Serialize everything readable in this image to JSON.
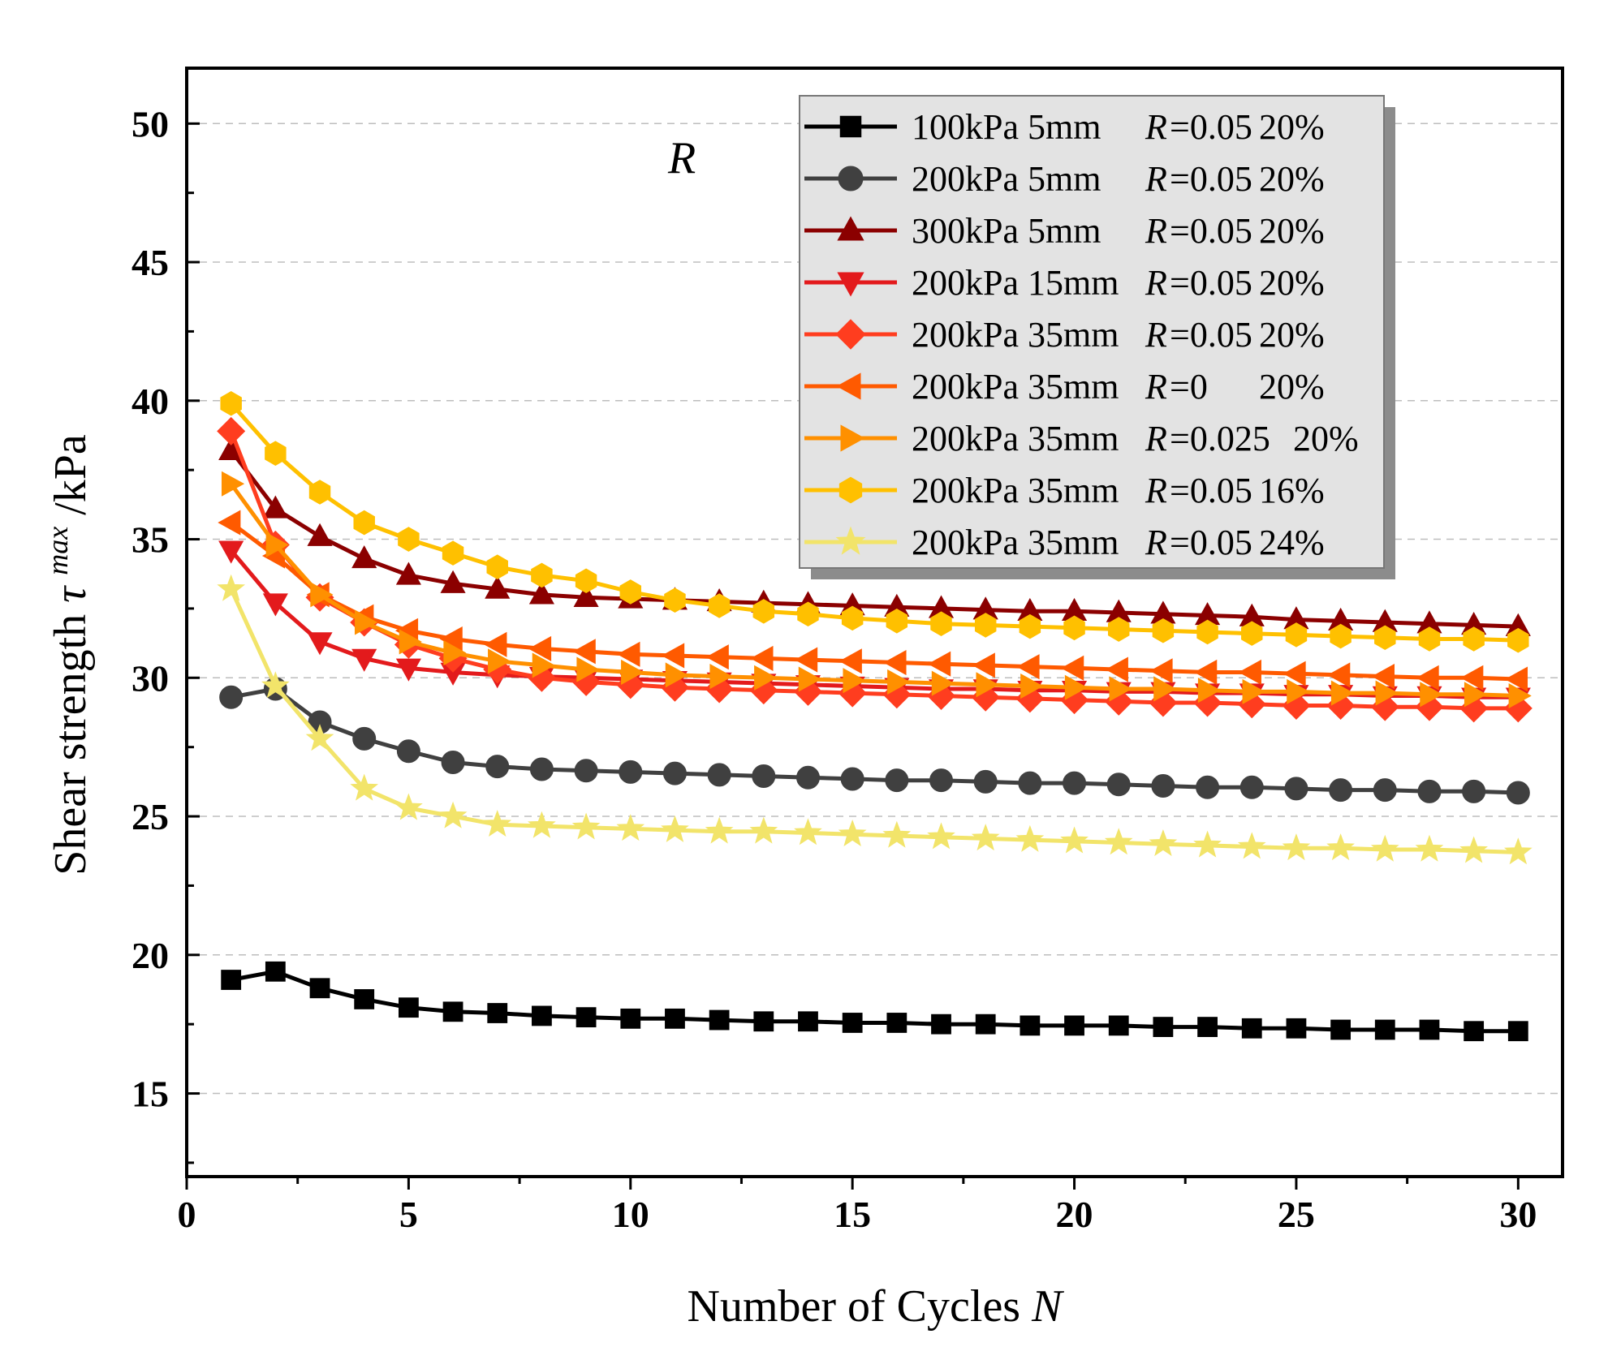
{
  "chart_data": {
    "type": "line",
    "xlabel": "Number of Cycles",
    "xlabel_var": "N",
    "ylabel": "Shear strength",
    "ylabel_symbol": "τ",
    "ylabel_sup": "max",
    "ylabel_unit": "/kPa",
    "annotation": "R",
    "xlim": [
      0,
      31
    ],
    "ylim": [
      12,
      52
    ],
    "xticks": [
      0,
      5,
      10,
      15,
      20,
      25,
      30
    ],
    "yticks": [
      15,
      20,
      25,
      30,
      35,
      40,
      45,
      50
    ],
    "grid_y": true,
    "legend_position": "top-right",
    "x": [
      1,
      2,
      3,
      4,
      5,
      6,
      7,
      8,
      9,
      10,
      11,
      12,
      13,
      14,
      15,
      16,
      17,
      18,
      19,
      20,
      21,
      22,
      23,
      24,
      25,
      26,
      27,
      28,
      29,
      30
    ],
    "series": [
      {
        "pressure": "100kPa",
        "size": "5mm",
        "r_var": "R",
        "r_val": "=0.05",
        "pct": "20%",
        "color": "#000000",
        "marker": "square",
        "values": [
          19.1,
          19.4,
          18.8,
          18.4,
          18.1,
          17.95,
          17.9,
          17.8,
          17.75,
          17.7,
          17.7,
          17.65,
          17.6,
          17.6,
          17.55,
          17.55,
          17.5,
          17.5,
          17.45,
          17.45,
          17.45,
          17.4,
          17.4,
          17.35,
          17.35,
          17.3,
          17.3,
          17.3,
          17.25,
          17.25
        ]
      },
      {
        "pressure": "200kPa",
        "size": "5mm",
        "r_var": "R",
        "r_val": "=0.05",
        "pct": "20%",
        "color": "#404040",
        "marker": "circle",
        "values": [
          29.3,
          29.6,
          28.4,
          27.8,
          27.35,
          26.95,
          26.8,
          26.7,
          26.65,
          26.6,
          26.55,
          26.5,
          26.45,
          26.4,
          26.35,
          26.3,
          26.3,
          26.25,
          26.2,
          26.2,
          26.15,
          26.1,
          26.05,
          26.05,
          26.0,
          25.95,
          25.95,
          25.9,
          25.9,
          25.85
        ]
      },
      {
        "pressure": "300kPa",
        "size": "5mm",
        "r_var": "R",
        "r_val": "=0.05",
        "pct": "20%",
        "color": "#8b0000",
        "marker": "triangle-up",
        "values": [
          38.2,
          36.1,
          35.1,
          34.3,
          33.7,
          33.4,
          33.2,
          33.0,
          32.9,
          32.85,
          32.8,
          32.75,
          32.7,
          32.65,
          32.6,
          32.55,
          32.5,
          32.45,
          32.4,
          32.4,
          32.35,
          32.3,
          32.25,
          32.2,
          32.1,
          32.05,
          32.0,
          31.95,
          31.9,
          31.85
        ]
      },
      {
        "pressure": "200kPa",
        "size": "15mm",
        "r_var": "R",
        "r_val": "=0.05",
        "pct": "20%",
        "color": "#e31a1c",
        "marker": "triangle-down",
        "values": [
          34.6,
          32.7,
          31.3,
          30.7,
          30.35,
          30.2,
          30.1,
          30.05,
          30.0,
          29.95,
          29.9,
          29.85,
          29.8,
          29.75,
          29.7,
          29.65,
          29.6,
          29.6,
          29.55,
          29.55,
          29.5,
          29.5,
          29.45,
          29.45,
          29.4,
          29.4,
          29.35,
          29.35,
          29.3,
          29.3
        ]
      },
      {
        "pressure": "200kPa",
        "size": "35mm",
        "r_var": "R",
        "r_val": "=0.05",
        "pct": "20%",
        "color": "#ff3d1f",
        "marker": "diamond",
        "values": [
          38.9,
          34.8,
          32.9,
          32.0,
          31.2,
          30.7,
          30.3,
          30.0,
          29.85,
          29.75,
          29.65,
          29.6,
          29.55,
          29.5,
          29.45,
          29.4,
          29.35,
          29.3,
          29.25,
          29.2,
          29.15,
          29.1,
          29.1,
          29.05,
          29.0,
          29.0,
          28.95,
          28.95,
          28.9,
          28.9
        ]
      },
      {
        "pressure": "200kPa",
        "size": "35mm",
        "r_var": "R",
        "r_val": "=0",
        "pct": "20%",
        "color": "#ff5a00",
        "marker": "triangle-left",
        "values": [
          35.6,
          34.4,
          33.0,
          32.2,
          31.7,
          31.4,
          31.2,
          31.05,
          30.95,
          30.85,
          30.8,
          30.75,
          30.7,
          30.65,
          30.6,
          30.55,
          30.5,
          30.45,
          30.4,
          30.35,
          30.3,
          30.25,
          30.2,
          30.2,
          30.15,
          30.1,
          30.05,
          30.0,
          30.0,
          29.95
        ]
      },
      {
        "pressure": "200kPa",
        "size": "35mm",
        "r_var": "R",
        "r_val": "=0.025",
        "pct": "20%",
        "color": "#ff9000",
        "marker": "triangle-right",
        "values": [
          37.0,
          34.8,
          33.0,
          32.0,
          31.3,
          30.9,
          30.6,
          30.45,
          30.3,
          30.2,
          30.1,
          30.05,
          30.0,
          29.95,
          29.9,
          29.85,
          29.8,
          29.75,
          29.7,
          29.65,
          29.6,
          29.6,
          29.55,
          29.5,
          29.5,
          29.45,
          29.45,
          29.4,
          29.4,
          29.35
        ]
      },
      {
        "pressure": "200kPa",
        "size": "35mm",
        "r_var": "R",
        "r_val": "=0.05",
        "pct": "16%",
        "color": "#ffc000",
        "marker": "hexagon",
        "values": [
          39.9,
          38.1,
          36.7,
          35.6,
          35.0,
          34.5,
          34.0,
          33.7,
          33.5,
          33.1,
          32.8,
          32.6,
          32.4,
          32.3,
          32.15,
          32.05,
          31.95,
          31.9,
          31.85,
          31.8,
          31.75,
          31.7,
          31.65,
          31.6,
          31.55,
          31.5,
          31.45,
          31.4,
          31.4,
          31.35
        ]
      },
      {
        "pressure": "200kPa",
        "size": "35mm",
        "r_var": "R",
        "r_val": "=0.05",
        "pct": "24%",
        "color": "#f2e46a",
        "marker": "star",
        "values": [
          33.2,
          29.7,
          27.8,
          26.0,
          25.3,
          25.0,
          24.7,
          24.65,
          24.6,
          24.55,
          24.5,
          24.45,
          24.45,
          24.4,
          24.35,
          24.3,
          24.25,
          24.2,
          24.15,
          24.1,
          24.05,
          24.0,
          23.95,
          23.9,
          23.85,
          23.85,
          23.8,
          23.8,
          23.75,
          23.7
        ]
      }
    ]
  }
}
